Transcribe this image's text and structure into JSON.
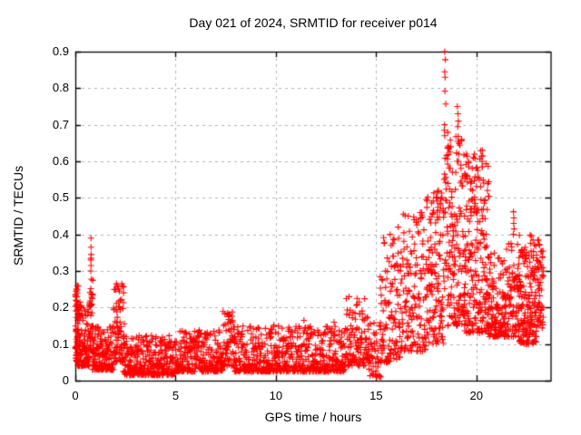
{
  "figure": {
    "background": "#ffffff"
  },
  "chart_data": {
    "type": "scatter",
    "title": "Day 021 of 2024, SRMTID for receiver p014",
    "xlabel": "GPS time / hours",
    "ylabel": "SRMTID / TECUs",
    "xlim": [
      0,
      23.7
    ],
    "ylim": [
      0,
      0.9
    ],
    "xticks": [
      0,
      5,
      10,
      15,
      20
    ],
    "xtick_labels": [
      "0",
      "5",
      "10",
      "15",
      "20"
    ],
    "yticks": [
      0,
      0.1,
      0.2,
      0.3,
      0.4,
      0.5,
      0.6,
      0.7,
      0.8,
      0.9
    ],
    "ytick_labels": [
      "0",
      "0.1",
      "0.2",
      "0.3",
      "0.4",
      "0.5",
      "0.6",
      "0.7",
      "0.8",
      "0.9"
    ],
    "grid": true,
    "grid_color": "#b0b0b0",
    "axis_color": "#000000",
    "legend": "none",
    "marker": "plus",
    "marker_color": "#ff0000",
    "marker_size": 7,
    "seed": 2024021,
    "series": [
      {
        "name": "SRMTID",
        "note": "dense scatter approximated by bands [x_start, x_end, y_min, y_max, n_points, skew_toward_min] plus explicit outlier points [hour, TECUs]",
        "bands": [
          [
            0.0,
            0.15,
            0.05,
            0.26,
            55,
            1.5
          ],
          [
            0.1,
            0.75,
            0.04,
            0.22,
            120,
            2.0
          ],
          [
            0.72,
            0.88,
            0.08,
            0.31,
            28,
            1.2
          ],
          [
            0.85,
            1.9,
            0.03,
            0.15,
            150,
            2.0
          ],
          [
            1.9,
            2.45,
            0.05,
            0.27,
            80,
            1.6
          ],
          [
            2.4,
            5.0,
            0.015,
            0.125,
            300,
            1.9
          ],
          [
            5.0,
            7.35,
            0.025,
            0.14,
            250,
            1.9
          ],
          [
            7.35,
            7.95,
            0.04,
            0.19,
            65,
            1.7
          ],
          [
            7.9,
            13.5,
            0.025,
            0.15,
            600,
            2.0
          ],
          [
            13.5,
            14.65,
            0.04,
            0.23,
            115,
            1.7
          ],
          [
            14.6,
            15.25,
            0.01,
            0.16,
            50,
            1.6
          ],
          [
            15.2,
            16.2,
            0.05,
            0.4,
            110,
            1.7
          ],
          [
            16.2,
            17.5,
            0.08,
            0.46,
            150,
            1.5
          ],
          [
            17.5,
            18.35,
            0.1,
            0.52,
            130,
            1.5
          ],
          [
            18.35,
            18.6,
            0.25,
            0.66,
            28,
            1.1
          ],
          [
            18.55,
            19.45,
            0.15,
            0.68,
            150,
            1.3
          ],
          [
            19.4,
            20.65,
            0.13,
            0.63,
            230,
            1.5
          ],
          [
            20.6,
            21.45,
            0.12,
            0.36,
            115,
            1.7
          ],
          [
            21.4,
            22.15,
            0.12,
            0.4,
            95,
            1.5
          ],
          [
            22.1,
            23.0,
            0.1,
            0.4,
            165,
            1.4
          ],
          [
            23.0,
            23.35,
            0.14,
            0.385,
            55,
            1.2
          ]
        ],
        "outliers": [
          [
            0.78,
            0.39
          ],
          [
            0.78,
            0.365
          ],
          [
            0.79,
            0.345
          ],
          [
            0.78,
            0.335
          ],
          [
            0.77,
            0.33
          ],
          [
            0.78,
            0.315
          ],
          [
            0.77,
            0.3
          ],
          [
            0.05,
            0.25
          ],
          [
            0.1,
            0.24
          ],
          [
            0.02,
            0.22
          ],
          [
            2.05,
            0.265
          ],
          [
            2.1,
            0.26
          ],
          [
            2.15,
            0.25
          ],
          [
            2.2,
            0.245
          ],
          [
            7.6,
            0.185
          ],
          [
            7.65,
            0.175
          ],
          [
            9.9,
            0.152
          ],
          [
            11.4,
            0.165
          ],
          [
            12.9,
            0.16
          ],
          [
            14.05,
            0.225
          ],
          [
            14.15,
            0.215
          ],
          [
            15.7,
            0.4
          ],
          [
            15.9,
            0.385
          ],
          [
            15.75,
            0.37
          ],
          [
            16.1,
            0.42
          ],
          [
            16.6,
            0.45
          ],
          [
            16.9,
            0.44
          ],
          [
            17.2,
            0.46
          ],
          [
            18.1,
            0.52
          ],
          [
            18.05,
            0.5
          ],
          [
            18.2,
            0.485
          ],
          [
            18.42,
            0.9
          ],
          [
            18.45,
            0.878
          ],
          [
            18.42,
            0.845
          ],
          [
            18.44,
            0.83
          ],
          [
            18.43,
            0.792
          ],
          [
            18.47,
            0.757
          ],
          [
            18.41,
            0.7
          ],
          [
            18.4,
            0.685
          ],
          [
            18.42,
            0.67
          ],
          [
            19.05,
            0.75
          ],
          [
            19.08,
            0.73
          ],
          [
            19.1,
            0.71
          ],
          [
            19.07,
            0.695
          ],
          [
            19.12,
            0.62
          ],
          [
            19.1,
            0.6
          ],
          [
            19.6,
            0.6
          ],
          [
            19.62,
            0.585
          ],
          [
            19.9,
            0.62
          ],
          [
            20.3,
            0.63
          ],
          [
            20.32,
            0.615
          ],
          [
            20.28,
            0.6
          ],
          [
            20.3,
            0.585
          ],
          [
            20.55,
            0.52
          ],
          [
            21.85,
            0.462
          ],
          [
            21.87,
            0.445
          ],
          [
            21.86,
            0.43
          ],
          [
            21.88,
            0.415
          ],
          [
            21.84,
            0.4
          ],
          [
            23.1,
            0.385
          ],
          [
            23.15,
            0.37
          ]
        ]
      }
    ]
  }
}
